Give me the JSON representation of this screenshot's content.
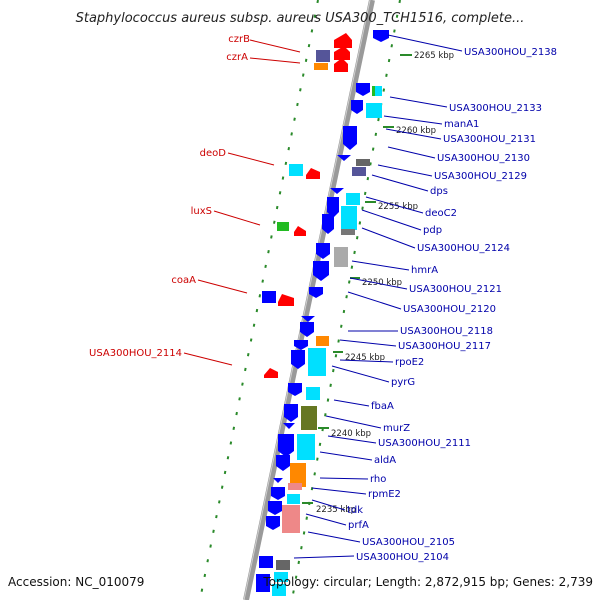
{
  "title": "Staphylococcus aureus subsp. aureus USA300_TCH1516, complete...",
  "footer": {
    "accession": "Accession: NC_010079",
    "topology": "Topology: circular; Length: 2,872,915 bp; Genes: 2,739"
  },
  "colors": {
    "left_label": "#cc0000",
    "right_label": "#0000aa",
    "backbone": "#9a9a9a",
    "dots": "#2a8a2a",
    "forward_gene": "#ff0000",
    "reverse_gene": "#0000ff",
    "cyan": "#00e0ff",
    "orange": "#ff8800",
    "gray": "#aaaaaa",
    "olive": "#667722",
    "pink": "#ee8888",
    "green": "#22bb22",
    "navy": "#555599"
  },
  "kbp_ticks": [
    "2265 kbp",
    "2260 kbp",
    "2255 kbp",
    "2250 kbp",
    "2245 kbp",
    "2240 kbp",
    "2235 kbp"
  ],
  "left_labels": [
    "czrB",
    "czrA",
    "deoD",
    "luxS",
    "coaA",
    "USA300HOU_2114"
  ],
  "right_labels": [
    "USA300HOU_2138",
    "USA300HOU_2133",
    "manA1",
    "USA300HOU_2131",
    "USA300HOU_2130",
    "USA300HOU_2129",
    "dps",
    "deoC2",
    "pdp",
    "USA300HOU_2124",
    "hmrA",
    "USA300HOU_2121",
    "USA300HOU_2120",
    "USA300HOU_2118",
    "USA300HOU_2117",
    "rpoE2",
    "pyrG",
    "fbaA",
    "murZ",
    "USA300HOU_2111",
    "aldA",
    "rho",
    "rpmE2",
    "tdk",
    "prfA",
    "USA300HOU_2105",
    "USA300HOU_2104"
  ]
}
